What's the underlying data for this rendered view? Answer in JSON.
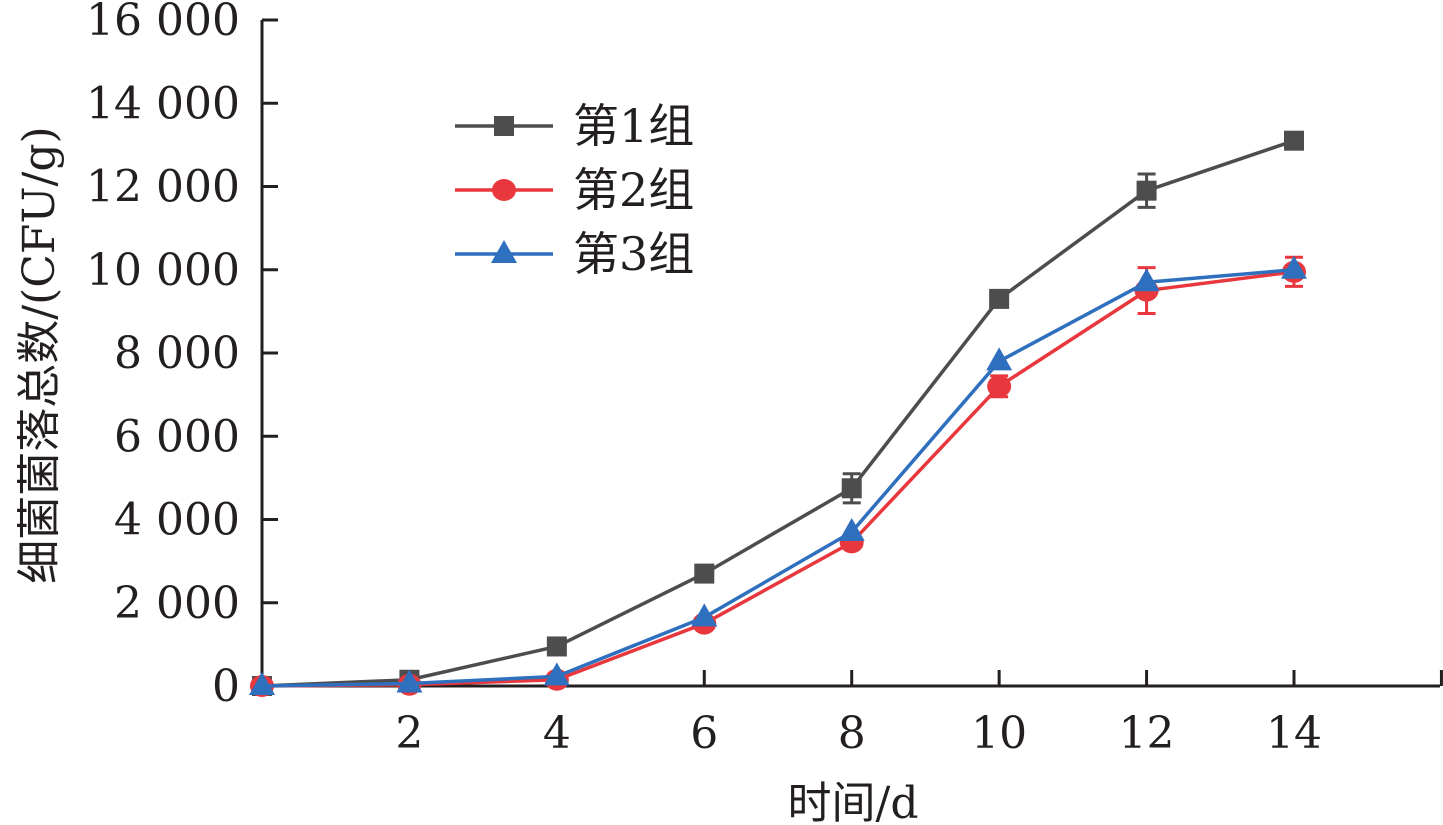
{
  "chart_data": {
    "type": "line",
    "title": "",
    "xlabel": "时间/d",
    "ylabel": "细菌菌落总数/(CFU/g)",
    "x": [
      0,
      2,
      4,
      6,
      8,
      10,
      12,
      14
    ],
    "xticks": [
      2,
      4,
      6,
      8,
      10,
      12,
      14
    ],
    "xtick_labels": [
      "2",
      "4",
      "6",
      "8",
      "10",
      "12",
      "14"
    ],
    "xlim": [
      0,
      16
    ],
    "yticks": [
      0,
      2000,
      4000,
      6000,
      8000,
      10000,
      12000,
      14000,
      16000
    ],
    "ytick_labels": [
      "0",
      "2 000",
      "4 000",
      "6 000",
      "8 000",
      "10 000",
      "12 000",
      "14 000",
      "16 000"
    ],
    "ylim": [
      0,
      16000
    ],
    "grid": false,
    "legend_position": "top-left",
    "series": [
      {
        "name": "第1组",
        "color": "#4d4d4d",
        "marker": "square",
        "values": [
          0,
          150,
          950,
          2700,
          4750,
          9300,
          11900,
          13100
        ],
        "errors": [
          0,
          0,
          0,
          0,
          350,
          0,
          400,
          0
        ]
      },
      {
        "name": "第2组",
        "color": "#e8383d",
        "marker": "circle",
        "values": [
          0,
          30,
          150,
          1500,
          3450,
          7200,
          9500,
          9950
        ],
        "errors": [
          0,
          0,
          0,
          0,
          0,
          250,
          550,
          350
        ]
      },
      {
        "name": "第3组",
        "color": "#2e6fbe",
        "marker": "triangle",
        "values": [
          0,
          60,
          230,
          1650,
          3700,
          7800,
          9700,
          10000
        ],
        "errors": [
          0,
          0,
          0,
          0,
          0,
          0,
          0,
          0
        ]
      }
    ]
  }
}
